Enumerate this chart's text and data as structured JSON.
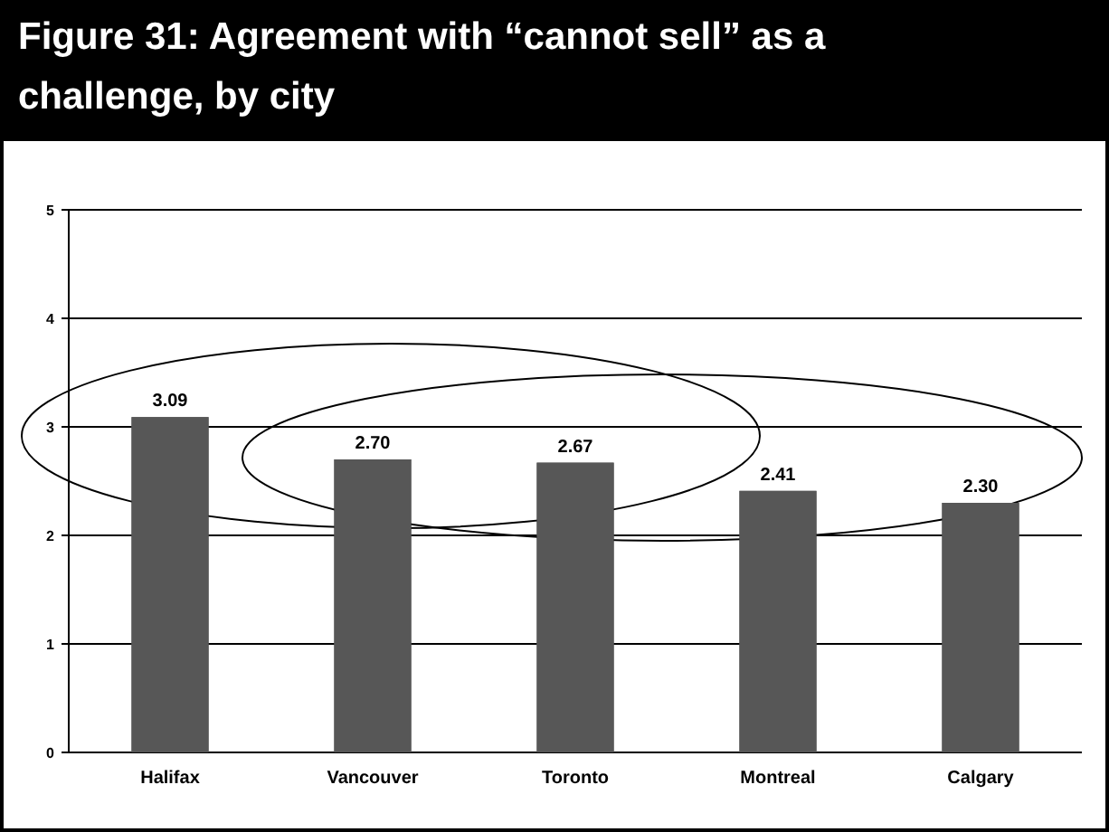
{
  "chart_data": {
    "type": "bar",
    "title": "Figure 31: Agreement with “cannot sell” as a challenge, by city",
    "categories": [
      "Halifax",
      "Vancouver",
      "Toronto",
      "Montreal",
      "Calgary"
    ],
    "values": [
      3.09,
      2.7,
      2.67,
      2.41,
      2.3
    ],
    "color": "#575757",
    "ylim": [
      0,
      5
    ],
    "yticks": [
      0,
      1,
      2,
      3,
      4,
      5
    ],
    "grid": "y",
    "value_labels": [
      "3.09",
      "2.70",
      "2.67",
      "2.41",
      "2.30"
    ]
  }
}
